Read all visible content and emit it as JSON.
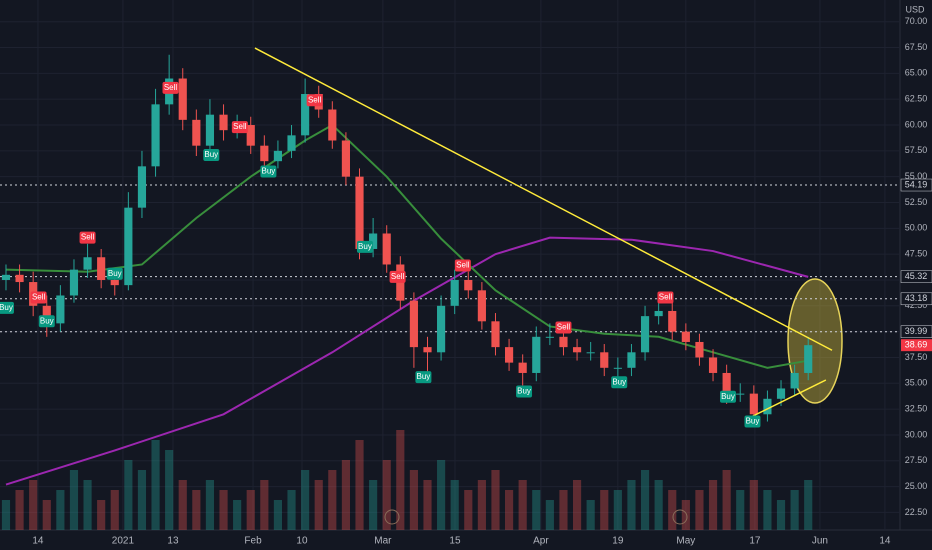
{
  "chart_data": {
    "type": "candlestick",
    "currency": "USD",
    "xlim": [
      -0.44,
      65.75
    ],
    "ylim": [
      20.8,
      72.1
    ],
    "xticks": [
      {
        "value": 2.35,
        "label": "14"
      },
      {
        "value": 8.6,
        "label": "2021"
      },
      {
        "value": 12.28,
        "label": "13"
      },
      {
        "value": 18.17,
        "label": "Feb"
      },
      {
        "value": 21.77,
        "label": "10"
      },
      {
        "value": 27.72,
        "label": "Mar"
      },
      {
        "value": 33.02,
        "label": "15"
      },
      {
        "value": 39.34,
        "label": "Apr"
      },
      {
        "value": 45.0,
        "label": "19"
      },
      {
        "value": 50.0,
        "label": "May"
      },
      {
        "value": 55.08,
        "label": "17"
      },
      {
        "value": 59.86,
        "label": "Jun"
      },
      {
        "value": 64.64,
        "label": "14"
      }
    ],
    "yticks": [
      {
        "value": 22.5,
        "label": "22.50"
      },
      {
        "value": 25,
        "label": "25.00"
      },
      {
        "value": 27.5,
        "label": "27.50"
      },
      {
        "value": 30,
        "label": "30.00"
      },
      {
        "value": 32.5,
        "label": "32.50"
      },
      {
        "value": 35,
        "label": "35.00"
      },
      {
        "value": 37.5,
        "label": "37.50"
      },
      {
        "value": 40,
        "label": "40.00"
      },
      {
        "value": 42.5,
        "label": "42.50"
      },
      {
        "value": 45,
        "label": "45.00"
      },
      {
        "value": 47.5,
        "label": "47.50"
      },
      {
        "value": 50,
        "label": "50.00"
      },
      {
        "value": 52.5,
        "label": "52.50"
      },
      {
        "value": 55,
        "label": "55.00"
      },
      {
        "value": 57.5,
        "label": "57.50"
      },
      {
        "value": 60,
        "label": "60.00"
      },
      {
        "value": 62.5,
        "label": "62.50"
      },
      {
        "value": 65,
        "label": "65.00"
      },
      {
        "value": 67.5,
        "label": "67.50"
      },
      {
        "value": 70,
        "label": "70.00"
      }
    ],
    "grid": true,
    "up_color": "#26a69a",
    "down_color": "#ef5350",
    "open": [
      45.0,
      45.5,
      44.8,
      42.5,
      40.8,
      43.5,
      46.0,
      47.2,
      45.0,
      44.5,
      52.0,
      56.0,
      62.0,
      64.5,
      60.5,
      58.0,
      61.0,
      59.5,
      60.0,
      58.0,
      56.5,
      57.5,
      59.0,
      63.0,
      61.5,
      58.5,
      55.0,
      48.0,
      49.5,
      46.5,
      43.0,
      38.5,
      38.0,
      42.5,
      45.0,
      44.0,
      41.0,
      38.5,
      37.0,
      36.0,
      39.5,
      39.5,
      38.5,
      38.0,
      38.0,
      36.5,
      36.5,
      38.0,
      41.5,
      42.0,
      40.0,
      39.0,
      37.5,
      36.0,
      34.0,
      34.0,
      32.0,
      33.5,
      34.5,
      36.0
    ],
    "high": [
      46.5,
      46.5,
      45.8,
      43.5,
      44.5,
      47.0,
      48.5,
      48.0,
      46.0,
      53.5,
      57.5,
      63.5,
      66.8,
      65.5,
      61.5,
      62.5,
      62.0,
      61.0,
      60.8,
      59.0,
      58.5,
      60.0,
      64.5,
      63.8,
      62.3,
      59.3,
      55.8,
      51.0,
      50.3,
      47.3,
      43.8,
      39.5,
      43.5,
      46.0,
      45.8,
      44.8,
      41.8,
      39.3,
      37.8,
      40.5,
      40.8,
      40.3,
      39.3,
      39.0,
      38.8,
      37.5,
      38.8,
      42.5,
      43.5,
      42.8,
      40.8,
      39.8,
      38.3,
      36.8,
      35.0,
      34.8,
      34.3,
      35.3,
      36.8,
      39.5
    ],
    "low": [
      44.0,
      43.8,
      41.5,
      39.5,
      40.0,
      42.8,
      45.2,
      44.2,
      43.5,
      44.0,
      51.0,
      55.0,
      61.0,
      59.5,
      57.0,
      57.5,
      58.5,
      58.7,
      57.2,
      55.7,
      55.8,
      56.8,
      58.3,
      60.7,
      57.7,
      54.2,
      47.0,
      47.2,
      45.7,
      42.2,
      36.5,
      35.5,
      37.2,
      41.7,
      43.2,
      40.2,
      37.7,
      36.2,
      34.8,
      35.2,
      38.7,
      37.7,
      37.2,
      37.2,
      35.7,
      35.2,
      35.7,
      37.2,
      40.7,
      39.2,
      38.2,
      36.7,
      35.2,
      33.0,
      33.2,
      31.0,
      31.3,
      32.8,
      33.8,
      35.3
    ],
    "close": [
      45.5,
      44.8,
      42.5,
      40.8,
      43.5,
      46.0,
      47.2,
      45.0,
      44.5,
      52.0,
      56.0,
      62.0,
      64.5,
      60.5,
      58.0,
      61.0,
      59.5,
      60.0,
      58.0,
      56.5,
      57.5,
      59.0,
      63.0,
      61.5,
      58.5,
      55.0,
      48.0,
      49.5,
      46.5,
      43.0,
      38.5,
      38.0,
      42.5,
      45.0,
      44.0,
      41.0,
      38.5,
      37.0,
      36.0,
      39.5,
      39.5,
      38.5,
      38.0,
      38.0,
      36.5,
      36.5,
      38.0,
      41.5,
      42.0,
      40.0,
      39.0,
      37.5,
      36.0,
      34.0,
      34.0,
      32.0,
      33.5,
      34.5,
      36.0,
      38.69
    ],
    "volume": [
      3,
      4,
      5,
      3,
      4,
      6,
      5,
      3,
      4,
      7,
      6,
      9,
      8,
      5,
      4,
      5,
      4,
      3,
      4,
      5,
      3,
      4,
      6,
      5,
      6,
      7,
      9,
      5,
      7,
      10,
      6,
      5,
      7,
      5,
      4,
      5,
      6,
      4,
      5,
      4,
      3,
      4,
      5,
      3,
      4,
      4,
      5,
      6,
      5,
      4,
      3,
      4,
      5,
      6,
      4,
      5,
      4,
      3,
      4,
      5
    ],
    "lines": [
      {
        "color": "#9c27b0",
        "x": [
          0,
          8,
          16,
          24,
          30,
          36,
          40,
          46,
          52,
          59
        ],
        "values": [
          25.2,
          28.5,
          32,
          38,
          43,
          47.5,
          49.1,
          48.9,
          47.8,
          45.3
        ]
      },
      {
        "color": "#388e3c",
        "x": [
          0,
          6,
          10,
          14,
          18,
          22,
          24,
          28,
          32,
          36,
          40,
          44,
          48,
          52,
          56,
          59
        ],
        "values": [
          46,
          45.8,
          46.5,
          51,
          55,
          58.5,
          60,
          55,
          49,
          44,
          40.5,
          39.8,
          39.5,
          38,
          36.5,
          37.2
        ]
      }
    ],
    "trendlines": [
      {
        "color": "#ffeb3b",
        "x": [
          18.31,
          60.75
        ],
        "values": [
          67.45,
          38.2
        ]
      },
      {
        "color": "#ffeb3b",
        "x": [
          54.35,
          60.3
        ],
        "values": [
          31.45,
          35.32
        ]
      }
    ],
    "price_lines": [
      54.19,
      45.32,
      43.18,
      39.99
    ],
    "last_price": 38.69,
    "signals": [
      {
        "label": "Buy",
        "x": 0.0,
        "value": 42.3
      },
      {
        "label": "Sell",
        "x": 2.4,
        "value": 43.3
      },
      {
        "label": "Buy",
        "x": 3.0,
        "value": 41.0
      },
      {
        "label": "Sell",
        "x": 6.0,
        "value": 49.1
      },
      {
        "label": "Buy",
        "x": 8.0,
        "value": 45.6
      },
      {
        "label": "Sell",
        "x": 12.1,
        "value": 63.6
      },
      {
        "label": "Buy",
        "x": 15.1,
        "value": 57.1
      },
      {
        "label": "Sell",
        "x": 17.2,
        "value": 59.8
      },
      {
        "label": "Buy",
        "x": 19.3,
        "value": 55.5
      },
      {
        "label": "Sell",
        "x": 22.7,
        "value": 62.4
      },
      {
        "label": "Buy",
        "x": 26.4,
        "value": 48.2
      },
      {
        "label": "Sell",
        "x": 28.8,
        "value": 45.3
      },
      {
        "label": "Buy",
        "x": 30.7,
        "value": 35.6
      },
      {
        "label": "Sell",
        "x": 33.6,
        "value": 46.4
      },
      {
        "label": "Buy",
        "x": 38.1,
        "value": 34.2
      },
      {
        "label": "Sell",
        "x": 41.0,
        "value": 40.4
      },
      {
        "label": "Buy",
        "x": 45.1,
        "value": 35.1
      },
      {
        "label": "Sell",
        "x": 48.5,
        "value": 43.3
      },
      {
        "label": "Buy",
        "x": 53.1,
        "value": 33.7
      },
      {
        "label": "Buy",
        "x": 54.9,
        "value": 31.3
      }
    ]
  }
}
